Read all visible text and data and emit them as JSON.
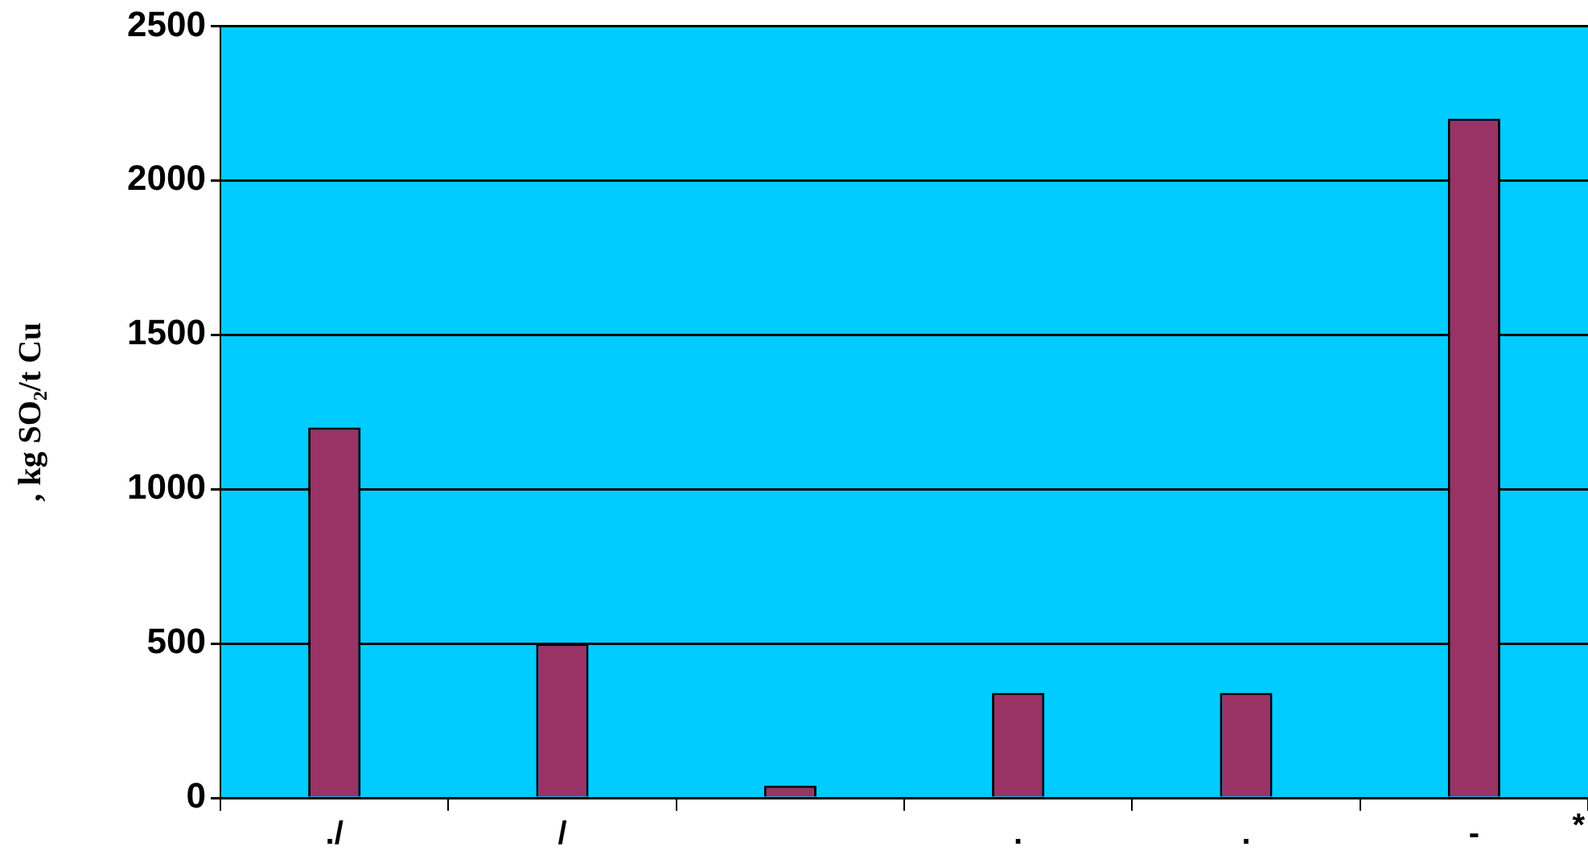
{
  "chart_data": {
    "type": "bar",
    "ylabel": ", kg SO₂/t Cu",
    "categories": [
      "./",
      "/",
      null,
      ".",
      ".",
      "-"
    ],
    "series": [
      {
        "color": "#993366",
        "values": [
          1200,
          500,
          40,
          340,
          340,
          2200
        ]
      }
    ],
    "ylim": [
      0,
      2500
    ],
    "yticks": [
      0,
      500,
      1000,
      1500,
      2000,
      2500
    ],
    "grid": "y",
    "legend": false,
    "annotations": [
      "*"
    ]
  }
}
